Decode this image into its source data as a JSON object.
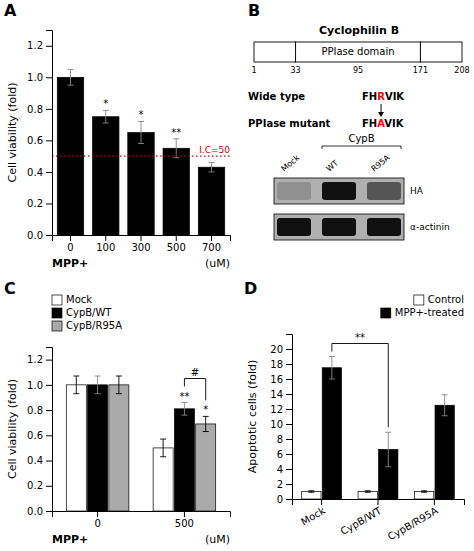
{
  "chart_data": [
    {
      "type": "bar",
      "title": "A",
      "categories": [
        "0",
        "100",
        "300",
        "500",
        "700"
      ],
      "values": [
        1.0,
        0.75,
        0.65,
        0.55,
        0.43
      ],
      "errors": [
        0.05,
        0.04,
        0.07,
        0.06,
        0.03
      ],
      "color": "#000000",
      "ylabel": "Cell viability (fold)",
      "xlabel": [
        "MPP+",
        "(uM)"
      ],
      "ylim": [
        0,
        1.3
      ],
      "yticks": [
        {
          "value": 0,
          "label": "0.0"
        },
        0.2,
        0.4,
        0.6,
        0.8,
        {
          "value": 1,
          "label": "1.0"
        },
        1.2
      ],
      "annotations": [
        {
          "text": "*",
          "x": "100"
        },
        {
          "text": "*",
          "x": "300"
        },
        {
          "text": "**",
          "x": "500"
        },
        {
          "text": "I.C=50",
          "y": 0.5,
          "color": "#cc0000",
          "line_style": "dotted"
        }
      ]
    },
    {
      "type": "diagram",
      "title": "B",
      "subtitle": "Cyclophilin B",
      "annotations": [
        "PPIase domain",
        "1",
        "33",
        "95",
        "171",
        "208",
        "Wide type",
        "FH",
        {
          "text": "R",
          "color": "#ff0000"
        },
        "VIK",
        "PPIase mutant",
        "FH",
        {
          "text": "A",
          "color": "#ff0000"
        },
        "VIK",
        "CypB",
        "Mock",
        "WT",
        "R95A",
        "HA",
        "α-actinin"
      ]
    },
    {
      "type": "bar",
      "title": "C",
      "categories": [
        "0",
        "500"
      ],
      "series": [
        {
          "name": "Mock",
          "color": "#ffffff",
          "values": [
            1.0,
            0.5
          ],
          "errors": [
            0.07,
            0.07
          ]
        },
        {
          "name": "CypB/WT",
          "color": "#000000",
          "values": [
            1.0,
            0.81
          ],
          "errors": [
            0.07,
            0.05
          ]
        },
        {
          "name": "CypB/R95A",
          "color": "#aaaaaa",
          "values": [
            1.0,
            0.69
          ],
          "errors": [
            0.07,
            0.06
          ]
        }
      ],
      "ylabel": "Cell viability (fold)",
      "xlabel": [
        "MPP+",
        "(uM)"
      ],
      "ylim": [
        0,
        1.3
      ],
      "yticks": [
        {
          "value": 0,
          "label": "0.0"
        },
        0.2,
        0.4,
        0.6,
        0.8,
        {
          "value": 1,
          "label": "1.0"
        },
        1.2
      ],
      "legend": "upper left",
      "annotations": [
        {
          "text": "**",
          "x": "500",
          "series": "CypB/WT"
        },
        {
          "text": "*",
          "x": "500",
          "series": "CypB/R95A"
        },
        {
          "text": "#",
          "x": "500",
          "series": [
            "CypB/WT",
            "CypB/R95A"
          ]
        }
      ]
    },
    {
      "type": "bar",
      "title": "D",
      "categories": [
        "Mock",
        "CypB/WT",
        "CypB/R95A"
      ],
      "series": [
        {
          "name": "Control",
          "color": "#ffffff",
          "values": [
            1.0,
            1.0,
            1.0
          ],
          "errors": [
            0.1,
            0.1,
            0.1
          ]
        },
        {
          "name": "MPP+-treated",
          "color": "#000000",
          "values": [
            17.5,
            6.6,
            12.5
          ],
          "errors": [
            1.5,
            2.3,
            1.4
          ]
        }
      ],
      "ylabel": "Apoptotic cells (fold)",
      "ylim": [
        0,
        22
      ],
      "yticks": [
        0,
        2,
        4,
        6,
        8,
        10,
        12,
        14,
        16,
        18,
        20
      ],
      "legend": "upper right",
      "annotations": [
        {
          "text": "**",
          "x": [
            "Mock",
            "CypB/WT"
          ],
          "series": "MPP+-treated"
        }
      ]
    }
  ]
}
